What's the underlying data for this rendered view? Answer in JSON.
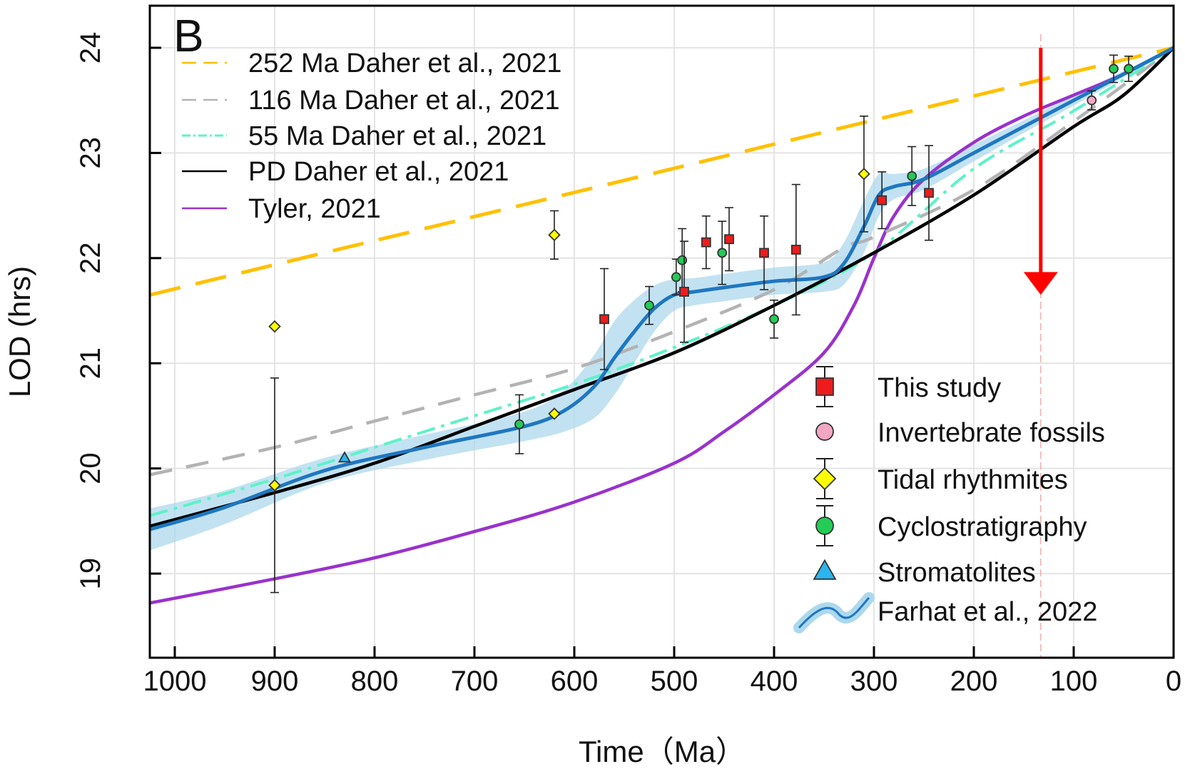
{
  "chart_data": {
    "type": "line",
    "panel_label": "B",
    "xlabel": "Time（Ma）",
    "ylabel": "LOD (hrs)",
    "xlim": [
      1025,
      0
    ],
    "ylim": [
      18.2,
      24.4
    ],
    "xticks": [
      1000,
      900,
      800,
      700,
      600,
      500,
      400,
      300,
      200,
      100,
      0
    ],
    "xtick_labels": [
      "1000",
      "900",
      "800",
      "700",
      "600",
      "500",
      "400",
      "300",
      "200",
      "100",
      "0"
    ],
    "yticks": [
      19,
      20,
      21,
      22,
      23,
      24
    ],
    "ytick_labels": [
      "19",
      "20",
      "21",
      "22",
      "23",
      "24"
    ],
    "grid": true,
    "marker_line": {
      "x": 133,
      "y_top": 24.0,
      "y_bottom": 21.65,
      "color": "#ff0000"
    },
    "series": [
      {
        "name": "252 Ma Daher et al., 2021",
        "style": "dashed",
        "color": "#ffc000",
        "x": [
          1025,
          0
        ],
        "y": [
          21.65,
          24.0
        ]
      },
      {
        "name": "116 Ma Daher et al., 2021",
        "style": "dashed",
        "color": "#b3b3b3",
        "x": [
          1025,
          900,
          800,
          700,
          600,
          500,
          400,
          330,
          300,
          200,
          100,
          0
        ],
        "y": [
          19.94,
          20.2,
          20.45,
          20.7,
          20.95,
          21.3,
          21.7,
          22.1,
          22.2,
          22.65,
          23.3,
          24.0
        ]
      },
      {
        "name": "55 Ma Daher et al., 2021",
        "style": "dashdot",
        "color": "#5ef2c8",
        "x": [
          1025,
          900,
          800,
          700,
          600,
          500,
          400,
          300,
          200,
          100,
          0
        ],
        "y": [
          19.55,
          19.9,
          20.2,
          20.5,
          20.8,
          21.15,
          21.55,
          22.05,
          22.85,
          23.4,
          24.0
        ]
      },
      {
        "name": "PD Daher et al., 2021",
        "style": "solid",
        "color": "#000000",
        "x": [
          1025,
          900,
          800,
          700,
          600,
          500,
          400,
          300,
          200,
          100,
          50,
          0
        ],
        "y": [
          19.45,
          19.77,
          20.05,
          20.4,
          20.75,
          21.1,
          21.55,
          22.05,
          22.6,
          23.25,
          23.55,
          24.0
        ]
      },
      {
        "name": "Tyler, 2021",
        "style": "solid",
        "color": "#9932cc",
        "x": [
          1025,
          900,
          800,
          700,
          600,
          500,
          450,
          400,
          350,
          320,
          300,
          280,
          250,
          200,
          150,
          100,
          50,
          0
        ],
        "y": [
          18.72,
          18.95,
          19.15,
          19.4,
          19.68,
          20.05,
          20.35,
          20.7,
          21.1,
          21.55,
          22.0,
          22.4,
          22.75,
          23.1,
          23.35,
          23.55,
          23.75,
          24.0
        ]
      },
      {
        "name": "Farhat et al., 2022",
        "style": "solid-band",
        "color": "#1f77c0",
        "band_color": "#add8ee",
        "x": [
          1025,
          950,
          850,
          750,
          650,
          610,
          580,
          560,
          540,
          520,
          500,
          480,
          450,
          400,
          350,
          330,
          310,
          295,
          280,
          250,
          200,
          150,
          100,
          50,
          0
        ],
        "y": [
          19.42,
          19.63,
          19.98,
          20.2,
          20.4,
          20.55,
          20.78,
          21.05,
          21.3,
          21.52,
          21.65,
          21.68,
          21.72,
          21.78,
          21.82,
          21.95,
          22.3,
          22.6,
          22.68,
          22.75,
          23.0,
          23.25,
          23.5,
          23.75,
          24.0
        ],
        "band_halfwidth": [
          0.2,
          0.16,
          0.12,
          0.12,
          0.14,
          0.2,
          0.3,
          0.35,
          0.3,
          0.22,
          0.15,
          0.13,
          0.13,
          0.13,
          0.14,
          0.2,
          0.25,
          0.2,
          0.12,
          0.1,
          0.08,
          0.06,
          0.05,
          0.03,
          0.0
        ]
      }
    ],
    "points": {
      "this_study": {
        "label": "This study",
        "color": "#ee1c1c",
        "marker": "square",
        "data": [
          {
            "x": 570,
            "y": 21.42,
            "err": 0.48
          },
          {
            "x": 490,
            "y": 21.68,
            "err": 0.48
          },
          {
            "x": 468,
            "y": 22.15,
            "err": 0.25
          },
          {
            "x": 445,
            "y": 22.18,
            "err": 0.3
          },
          {
            "x": 410,
            "y": 22.05,
            "err": 0.35
          },
          {
            "x": 378,
            "y": 22.08,
            "err": 0.62
          },
          {
            "x": 292,
            "y": 22.55,
            "err": 0.27
          },
          {
            "x": 245,
            "y": 22.62,
            "err": 0.45
          }
        ]
      },
      "invertebrate_fossils": {
        "label": "Invertebrate fossils",
        "color": "#f4a7c4",
        "marker": "circle",
        "data": [
          {
            "x": 82,
            "y": 23.5,
            "err": 0.09
          }
        ]
      },
      "tidal_rhythmites": {
        "label": "Tidal rhythmites",
        "color": "#ffff00",
        "marker": "diamond",
        "data": [
          {
            "x": 900,
            "y": 21.35,
            "err": 0
          },
          {
            "x": 900,
            "y": 19.84,
            "err": 1.02
          },
          {
            "x": 620,
            "y": 22.22,
            "err": 0.23
          },
          {
            "x": 620,
            "y": 20.52,
            "err": 0
          },
          {
            "x": 310,
            "y": 22.8,
            "err": 0.55
          }
        ]
      },
      "cyclostratigraphy": {
        "label": "Cyclostratigraphy",
        "color": "#22cc55",
        "marker": "circle",
        "data": [
          {
            "x": 655,
            "y": 20.42,
            "err": 0.28
          },
          {
            "x": 525,
            "y": 21.55,
            "err": 0.18
          },
          {
            "x": 498,
            "y": 21.82,
            "err": 0.17
          },
          {
            "x": 492,
            "y": 21.98,
            "err": 0.3
          },
          {
            "x": 452,
            "y": 22.05,
            "err": 0.3
          },
          {
            "x": 400,
            "y": 21.42,
            "err": 0.18
          },
          {
            "x": 262,
            "y": 22.78,
            "err": 0.28
          },
          {
            "x": 60,
            "y": 23.8,
            "err": 0.13
          },
          {
            "x": 45,
            "y": 23.8,
            "err": 0.12
          }
        ]
      },
      "stromatolites": {
        "label": "Stromatolites",
        "color": "#2bb5f0",
        "marker": "triangle",
        "data": [
          {
            "x": 830,
            "y": 20.1,
            "err": 0
          }
        ]
      }
    },
    "legend_lines_placement": "top-left",
    "legend_markers_placement": "bottom-right"
  }
}
